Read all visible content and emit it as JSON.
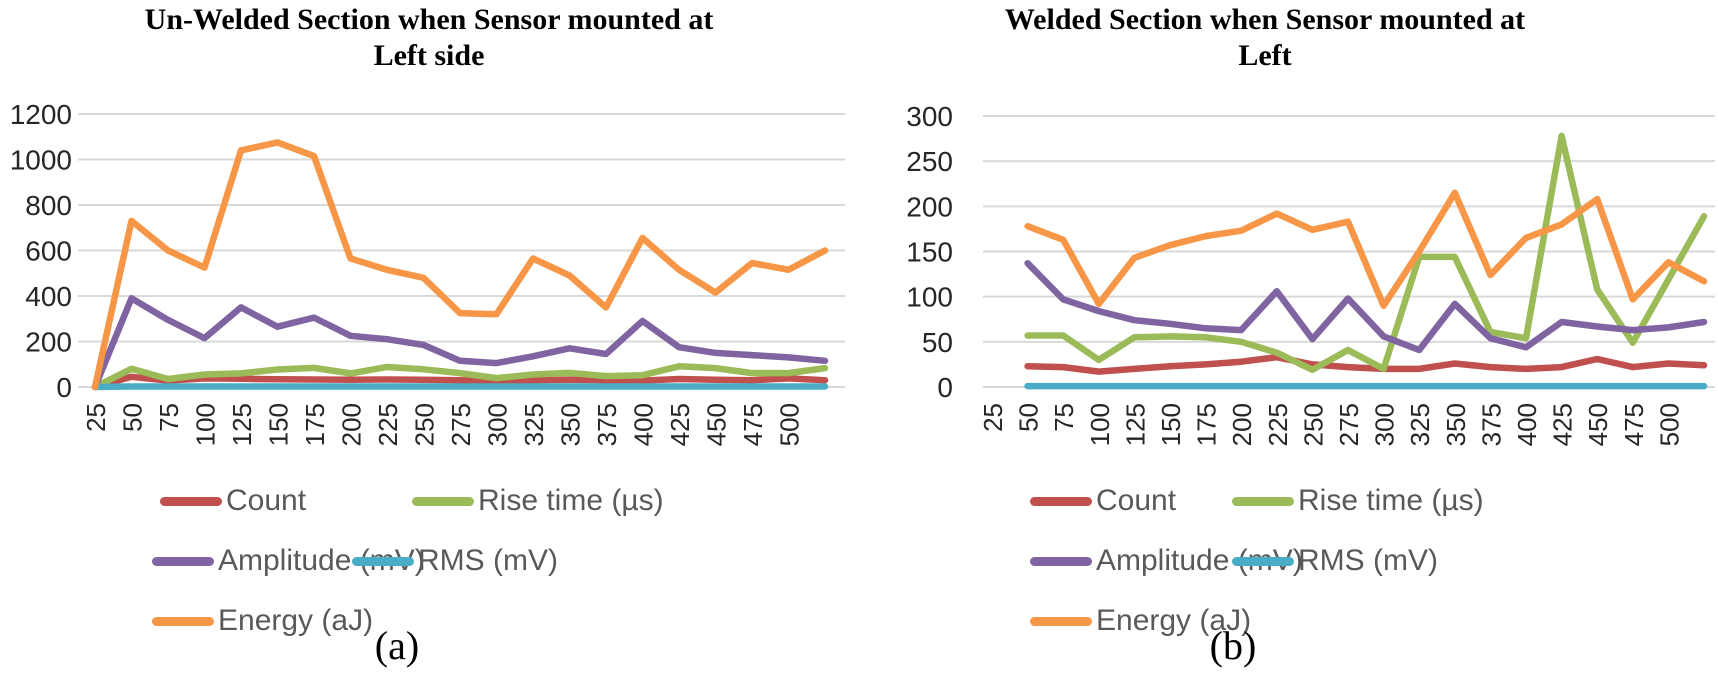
{
  "legend": {
    "items": [
      {
        "label": "Count",
        "color": "#C0504D"
      },
      {
        "label": "Rise time (µs)",
        "color": "#9BBB59"
      },
      {
        "label": "Amplitude (mV)",
        "color": "#8064A2"
      },
      {
        "label": "RMS (mV)",
        "color": "#4BACC6"
      },
      {
        "label": "Energy (aJ)",
        "color": "#F79646"
      }
    ]
  },
  "colors": {
    "count": "#C0504D",
    "rise_time": "#9BBB59",
    "amplitude": "#8064A2",
    "rms": "#4BACC6",
    "energy": "#F79646",
    "gridline": "#D9D9D9",
    "axis_text": "#262626",
    "legend_text": "#595959"
  },
  "chart_data": [
    {
      "type": "line",
      "title": "Un-Welded Section when Sensor mounted at Left side",
      "title_lines": [
        "Un-Welded Section when Sensor mounted at",
        "Left side"
      ],
      "caption": "(a)",
      "x": [
        25,
        50,
        75,
        100,
        125,
        150,
        175,
        200,
        225,
        250,
        275,
        300,
        325,
        350,
        375,
        400,
        425,
        450,
        475,
        500,
        525
      ],
      "x_tick_labels": [
        "25",
        "50",
        "75",
        "100",
        "125",
        "150",
        "175",
        "200",
        "225",
        "250",
        "275",
        "300",
        "325",
        "350",
        "375",
        "400",
        "425",
        "450",
        "475",
        "500"
      ],
      "ylim": [
        0,
        1200
      ],
      "y_ticks": [
        0,
        200,
        400,
        600,
        800,
        1000,
        1200
      ],
      "grid": true,
      "legend_position": "bottom",
      "series": [
        {
          "name": "Count",
          "color": "#C0504D",
          "values": [
            0,
            45,
            28,
            38,
            36,
            34,
            33,
            32,
            33,
            32,
            30,
            27,
            30,
            32,
            30,
            28,
            35,
            32,
            30,
            38,
            30
          ]
        },
        {
          "name": "Rise time (µs)",
          "color": "#9BBB59",
          "values": [
            0,
            80,
            35,
            55,
            60,
            77,
            84,
            60,
            88,
            78,
            61,
            39,
            55,
            62,
            48,
            52,
            91,
            83,
            61,
            61,
            83
          ]
        },
        {
          "name": "Amplitude (mV)",
          "color": "#8064A2",
          "values": [
            0,
            390,
            295,
            215,
            350,
            265,
            305,
            225,
            210,
            185,
            115,
            105,
            135,
            170,
            145,
            290,
            175,
            150,
            140,
            130,
            115
          ]
        },
        {
          "name": "RMS (mV)",
          "color": "#4BACC6",
          "values": [
            0,
            2,
            2,
            2,
            2,
            2,
            2,
            2,
            2,
            2,
            2,
            2,
            2,
            2,
            2,
            2,
            2,
            2,
            2,
            2,
            2
          ]
        },
        {
          "name": "Energy (aJ)",
          "color": "#F79646",
          "values": [
            0,
            730,
            600,
            525,
            1040,
            1075,
            1015,
            565,
            515,
            480,
            325,
            320,
            565,
            490,
            350,
            655,
            515,
            415,
            545,
            515,
            600
          ]
        }
      ]
    },
    {
      "type": "line",
      "title": "Welded Section when Sensor mounted at Left",
      "title_lines": [
        "Welded Section when Sensor mounted at",
        "Left"
      ],
      "caption": "(b)",
      "x": [
        25,
        50,
        75,
        100,
        125,
        150,
        175,
        200,
        225,
        250,
        275,
        300,
        325,
        350,
        375,
        400,
        425,
        450,
        475,
        500,
        525
      ],
      "x_tick_labels": [
        "25",
        "50",
        "75",
        "100",
        "125",
        "150",
        "175",
        "200",
        "225",
        "250",
        "275",
        "300",
        "325",
        "350",
        "375",
        "400",
        "425",
        "450",
        "475",
        "500"
      ],
      "ylim": [
        0,
        300
      ],
      "y_ticks": [
        0,
        50,
        100,
        150,
        200,
        250,
        300
      ],
      "grid": true,
      "legend_position": "bottom",
      "series": [
        {
          "name": "Count",
          "color": "#C0504D",
          "values": [
            null,
            23,
            22,
            17,
            20,
            23,
            25,
            28,
            33,
            25,
            22,
            20,
            20,
            26,
            22,
            20,
            22,
            31,
            22,
            26,
            24
          ]
        },
        {
          "name": "Rise time (µs)",
          "color": "#9BBB59",
          "values": [
            null,
            57,
            57,
            30,
            55,
            56,
            55,
            50,
            38,
            19,
            41,
            20,
            144,
            144,
            61,
            54,
            278,
            108,
            49,
            119,
            189
          ]
        },
        {
          "name": "Amplitude (mV)",
          "color": "#8064A2",
          "values": [
            null,
            137,
            97,
            84,
            74,
            70,
            65,
            63,
            106,
            53,
            98,
            56,
            41,
            92,
            54,
            44,
            72,
            67,
            63,
            66,
            72
          ]
        },
        {
          "name": "RMS (mV)",
          "color": "#4BACC6",
          "values": [
            null,
            1,
            1,
            1,
            1,
            1,
            1,
            1,
            1,
            1,
            1,
            1,
            1,
            1,
            1,
            1,
            1,
            1,
            1,
            1,
            1
          ]
        },
        {
          "name": "Energy (aJ)",
          "color": "#F79646",
          "values": [
            null,
            178,
            163,
            92,
            143,
            157,
            167,
            173,
            192,
            174,
            183,
            90,
            150,
            215,
            124,
            165,
            180,
            208,
            97,
            138,
            117
          ]
        }
      ]
    }
  ]
}
